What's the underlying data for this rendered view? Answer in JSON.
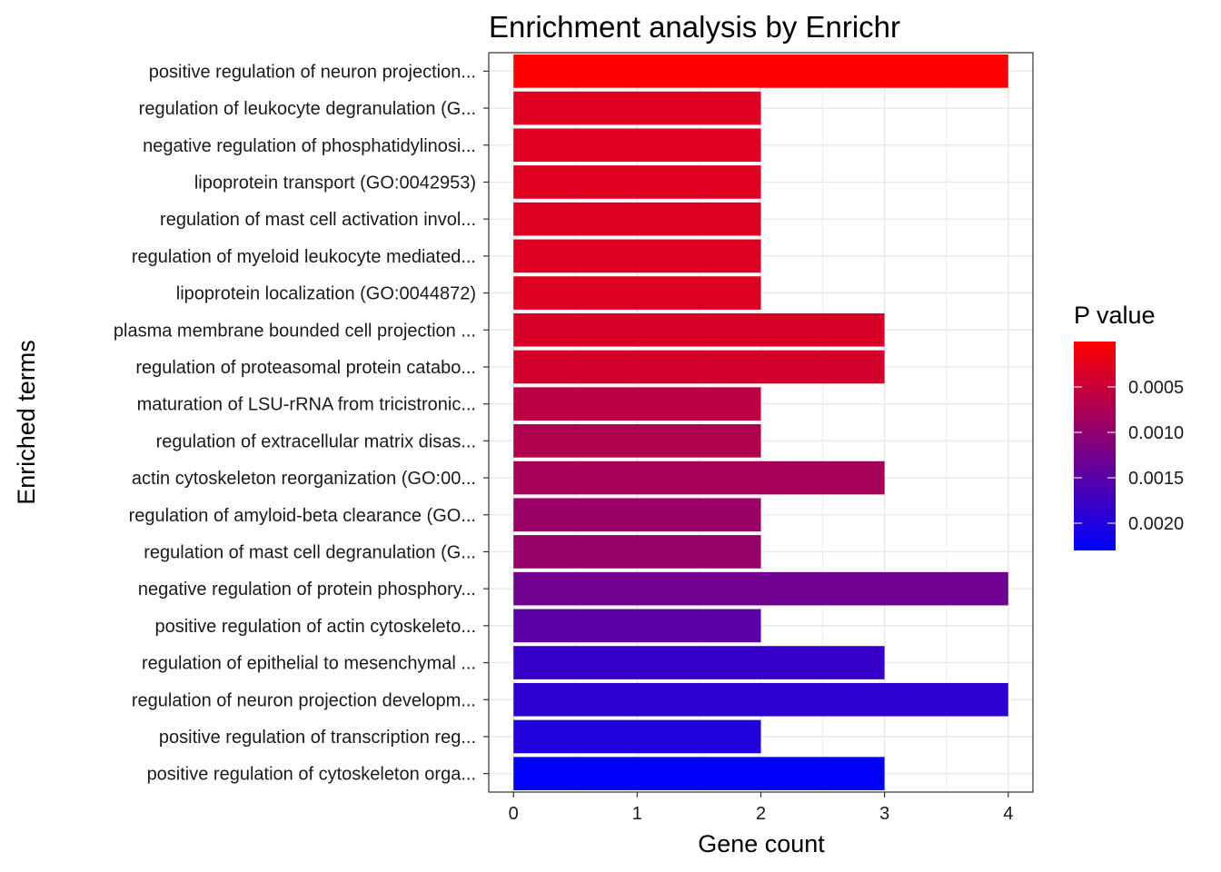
{
  "chart_data": {
    "type": "bar",
    "orientation": "horizontal",
    "title": "Enrichment analysis by Enrichr",
    "xlabel": "Gene count",
    "ylabel": "Enriched terms",
    "xlim": [
      -0.2,
      4.2
    ],
    "xticks": [
      "0",
      "1",
      "2",
      "3",
      "4"
    ],
    "grid": true,
    "legend": {
      "title": "P value",
      "placement": "right",
      "type": "colorbar",
      "low_color": "#FF0000",
      "high_color": "#0000FF",
      "range": [
        0.0,
        0.0023
      ],
      "ticks": [
        "0.0005",
        "0.0010",
        "0.0015",
        "0.0020"
      ],
      "tick_values": [
        0.0005,
        0.001,
        0.0015,
        0.002
      ]
    },
    "categories": [
      "positive regulation of neuron projection...",
      "regulation of leukocyte degranulation (G...",
      "negative regulation of phosphatidylinosi...",
      "lipoprotein transport (GO:0042953)",
      "regulation of mast cell activation invol...",
      "regulation of myeloid leukocyte mediated...",
      "lipoprotein localization (GO:0044872)",
      "plasma membrane bounded cell projection ...",
      "regulation of proteasomal protein catabo...",
      "maturation of LSU-rRNA from tricistronic...",
      "regulation of extracellular matrix disas...",
      "actin cytoskeleton reorganization (GO:00...",
      "regulation of amyloid-beta clearance (GO...",
      "regulation of mast cell degranulation (G...",
      "negative regulation of protein phosphory...",
      "positive regulation of actin cytoskeleto...",
      "regulation of epithelial to mesenchymal ...",
      "regulation of neuron projection developm...",
      "positive regulation of transcription reg...",
      "positive regulation of cytoskeleton orga..."
    ],
    "values": [
      4,
      2,
      2,
      2,
      2,
      2,
      2,
      3,
      3,
      2,
      2,
      3,
      2,
      2,
      4,
      2,
      3,
      4,
      2,
      3
    ],
    "p_values": [
      2e-05,
      0.00028,
      0.00028,
      0.00028,
      0.0003,
      0.0003,
      0.0003,
      0.00035,
      0.0004,
      0.0006,
      0.0007,
      0.0008,
      0.0009,
      0.00095,
      0.0013,
      0.0015,
      0.0018,
      0.0019,
      0.002,
      0.0023
    ]
  }
}
